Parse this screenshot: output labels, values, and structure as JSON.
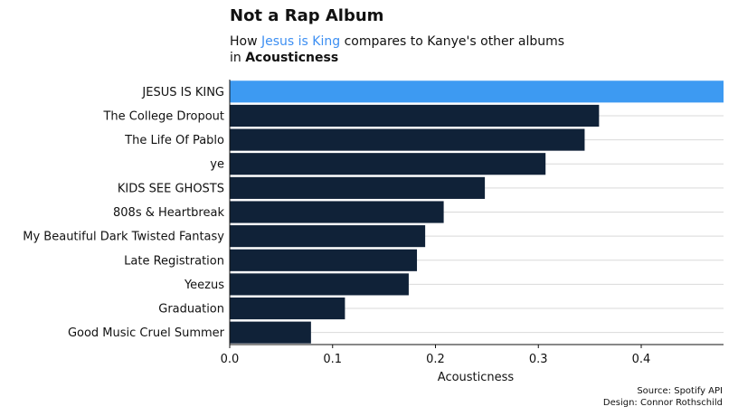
{
  "subtitle": {
    "prefix": "How ",
    "highlight": "Jesus is King",
    "middle": " compares to Kanye's other albums",
    "line2_prefix": "in ",
    "metric": "Acousticness"
  },
  "credits": {
    "source": "Source: Spotify API",
    "design": "Design: Connor Rothschild"
  },
  "colors": {
    "highlight_bar": "#3d9af2",
    "bar": "#102238",
    "grid": "#d9d9d9",
    "highlight_text": "#3d8ff2"
  },
  "chart_data": {
    "type": "bar",
    "orientation": "horizontal",
    "title": "Not a Rap Album",
    "xlabel": "Acousticness",
    "ylabel": "",
    "xlim": [
      0,
      0.48
    ],
    "xticks": [
      0.0,
      0.1,
      0.2,
      0.3,
      0.4
    ],
    "tick_labels": [
      "0.0",
      "0.1",
      "0.2",
      "0.3",
      "0.4"
    ],
    "grid": true,
    "highlighted_category": "JESUS IS KING",
    "categories": [
      "JESUS IS KING",
      "The College Dropout",
      "The Life Of Pablo",
      "ye",
      "KIDS SEE GHOSTS",
      "808s & Heartbreak",
      "My Beautiful Dark Twisted Fantasy",
      "Late Registration",
      "Yeezus",
      "Graduation",
      "Good Music Cruel Summer"
    ],
    "values": [
      0.48,
      0.359,
      0.345,
      0.307,
      0.248,
      0.208,
      0.19,
      0.182,
      0.174,
      0.112,
      0.079
    ]
  }
}
